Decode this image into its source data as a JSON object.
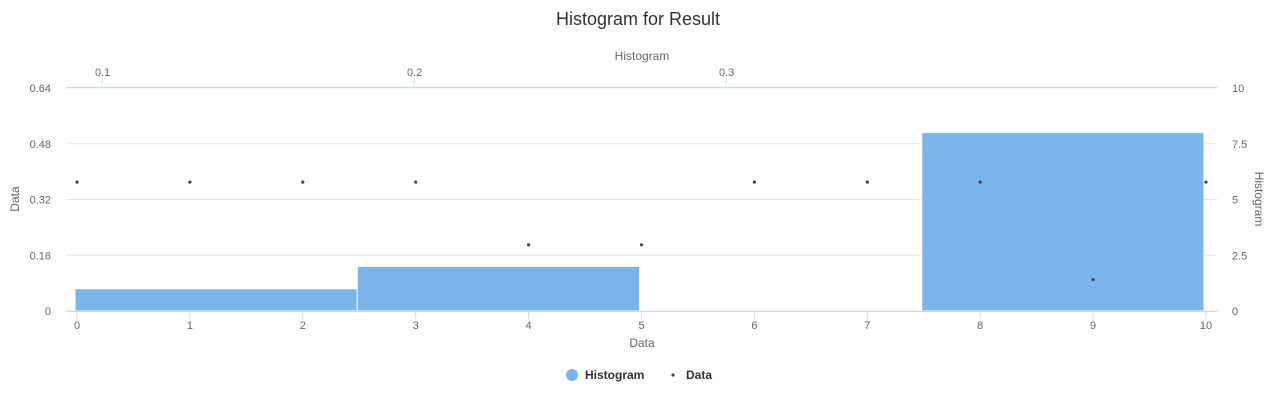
{
  "chart_data": {
    "type": "bar",
    "title": "Histogram for Result",
    "colors": {
      "histogram": "#7cb5ec",
      "data": "#434348",
      "grid": "#e6e6e6",
      "axis": "#ccd6eb"
    },
    "x_axis_bottom": {
      "title": "Data",
      "range": [
        0,
        10
      ],
      "ticks": [
        "0",
        "1",
        "2",
        "3",
        "4",
        "5",
        "6",
        "7",
        "8",
        "9",
        "10"
      ]
    },
    "x_axis_top": {
      "title": "Histogram",
      "ticks": [
        {
          "value": 0.1,
          "label": "0.1"
        },
        {
          "value": 0.2,
          "label": "0.2"
        },
        {
          "value": 0.3,
          "label": "0.3"
        }
      ]
    },
    "y_axis_left": {
      "title": "Data",
      "range": [
        0,
        0.64
      ],
      "ticks": [
        "0",
        "0.16",
        "0.32",
        "0.48",
        "0.64"
      ]
    },
    "y_axis_right": {
      "title": "Histogram",
      "range": [
        0,
        10
      ],
      "ticks": [
        "0",
        "2.5",
        "5",
        "7.5",
        "10"
      ]
    },
    "grid": true,
    "legend": {
      "position": "bottom-center"
    },
    "series": [
      {
        "name": "Histogram",
        "kind": "histogram",
        "axis": "right",
        "bins": [
          {
            "x0": 0,
            "x1": 2.5,
            "count": 1
          },
          {
            "x0": 2.5,
            "x1": 5,
            "count": 2
          },
          {
            "x0": 5,
            "x1": 7.5,
            "count": 0
          },
          {
            "x0": 7.5,
            "x1": 10,
            "count": 8
          }
        ]
      },
      {
        "name": "Data",
        "kind": "scatter",
        "axis": "left",
        "points": [
          {
            "x": 0,
            "y": 0.37
          },
          {
            "x": 1,
            "y": 0.37
          },
          {
            "x": 2,
            "y": 0.37
          },
          {
            "x": 3,
            "y": 0.37
          },
          {
            "x": 4,
            "y": 0.19
          },
          {
            "x": 5,
            "y": 0.19
          },
          {
            "x": 6,
            "y": 0.37
          },
          {
            "x": 7,
            "y": 0.37
          },
          {
            "x": 8,
            "y": 0.37
          },
          {
            "x": 9,
            "y": 0.09
          },
          {
            "x": 10,
            "y": 0.37
          }
        ]
      }
    ]
  }
}
